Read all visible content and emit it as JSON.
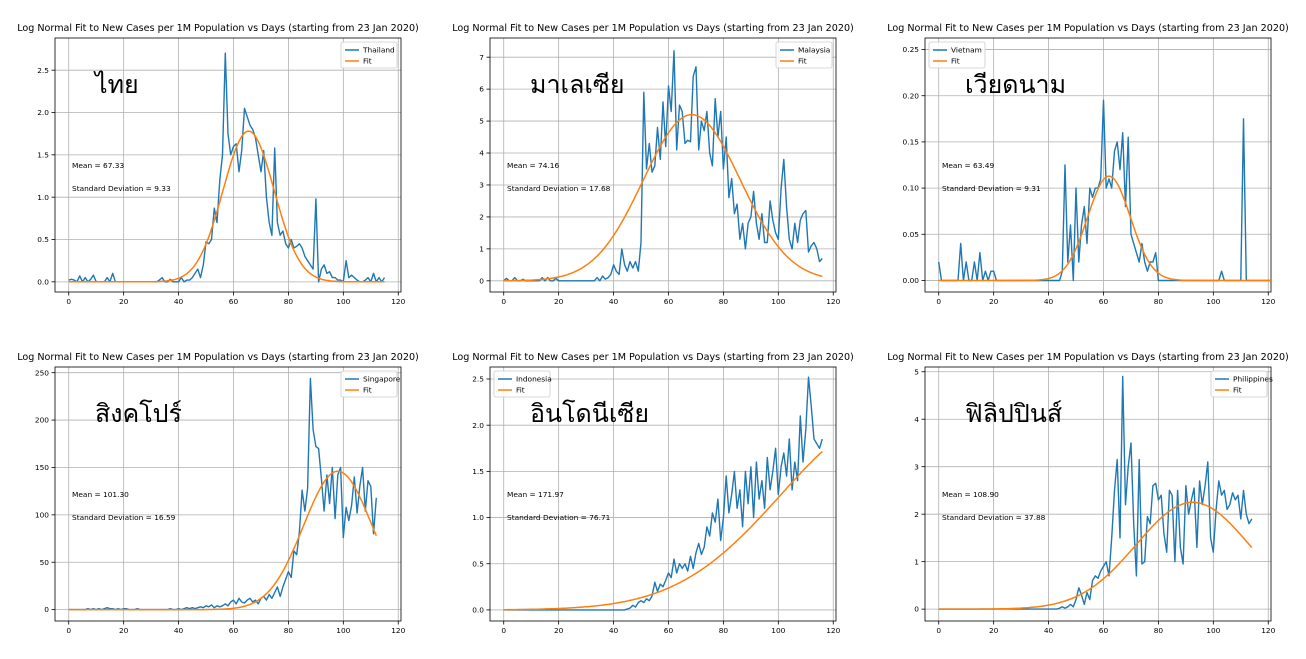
{
  "chart_data": [
    {
      "type": "line",
      "title": "Log Normal Fit to New Cases per 1M Population vs Days (starting from 23 Jan 2020)",
      "annotation": "ไทย",
      "mean_text": "Mean = 67.33",
      "sd_text": "Standard Deviation = 9.33",
      "legend_position": "top-right",
      "xlim": [
        -5,
        121
      ],
      "ylim": [
        -0.12,
        2.88
      ],
      "xticks": [
        0,
        20,
        40,
        60,
        80,
        100,
        120
      ],
      "yticks": [
        0.0,
        0.5,
        1.0,
        1.5,
        2.0,
        2.5
      ],
      "ytick_labels": [
        "0.0",
        "0.5",
        "1.0",
        "1.5",
        "2.0",
        "2.5"
      ],
      "grid": true,
      "fit": {
        "mean": 65.5,
        "sd": 9.33,
        "peak": 1.78,
        "color": "#ff7f0e"
      },
      "series": [
        {
          "name": "Thailand",
          "color": "#1f77b4",
          "values": [
            0.02,
            0.03,
            0.02,
            0.0,
            0.07,
            0.0,
            0.05,
            0.0,
            0.03,
            0.08,
            0.0,
            0.0,
            0.0,
            0.0,
            0.05,
            0.0,
            0.1,
            0.0,
            0.0,
            0.0,
            0.0,
            0.0,
            0.0,
            0.0,
            0.0,
            0.0,
            0.0,
            0.0,
            0.0,
            0.0,
            0.0,
            0.0,
            0.0,
            0.02,
            0.05,
            0.0,
            0.0,
            0.03,
            0.0,
            0.0,
            0.0,
            0.05,
            0.0,
            0.02,
            0.02,
            0.05,
            0.1,
            0.15,
            0.05,
            0.2,
            0.47,
            0.45,
            0.5,
            0.87,
            0.7,
            1.2,
            1.5,
            2.7,
            1.75,
            1.5,
            1.6,
            1.63,
            1.3,
            1.55,
            2.05,
            1.95,
            1.85,
            1.8,
            1.7,
            1.5,
            1.3,
            1.55,
            1.0,
            0.7,
            0.55,
            1.58,
            0.7,
            0.55,
            0.6,
            0.45,
            0.4,
            0.5,
            0.4,
            0.42,
            0.45,
            0.4,
            0.3,
            0.25,
            0.2,
            0.15,
            0.98,
            0.0,
            0.15,
            0.2,
            0.1,
            0.12,
            0.05,
            0.05,
            0.02,
            0.02,
            0.0,
            0.25,
            0.05,
            0.08,
            0.05,
            0.02,
            0.0,
            0.0,
            0.02,
            0.05,
            0.0,
            0.1,
            0.0,
            0.05,
            0.0,
            0.05
          ]
        }
      ]
    },
    {
      "type": "line",
      "title": "Log Normal Fit to New Cases per 1M Population vs Days (starting from 23 Jan 2020)",
      "annotation": "มาเลเซีย",
      "mean_text": "Mean = 74.16",
      "sd_text": "Standard Deviation = 17.68",
      "legend_position": "top-right",
      "xlim": [
        -5,
        121
      ],
      "ylim": [
        -0.35,
        7.6
      ],
      "xticks": [
        0,
        20,
        40,
        60,
        80,
        100,
        120
      ],
      "yticks": [
        0,
        1,
        2,
        3,
        4,
        5,
        6,
        7
      ],
      "ytick_labels": [
        "0",
        "1",
        "2",
        "3",
        "4",
        "5",
        "6",
        "7"
      ],
      "grid": true,
      "fit": {
        "mean": 68.5,
        "sd": 17.68,
        "peak": 5.2,
        "color": "#ff7f0e"
      },
      "series": [
        {
          "name": "Malaysia",
          "color": "#1f77b4",
          "values": [
            0.0,
            0.08,
            0.0,
            0.0,
            0.1,
            0.0,
            0.0,
            0.05,
            0.0,
            0.0,
            0.0,
            0.0,
            0.0,
            0.0,
            0.1,
            0.0,
            0.1,
            0.0,
            0.0,
            0.08,
            0.0,
            0.0,
            0.0,
            0.0,
            0.0,
            0.0,
            0.0,
            0.0,
            0.0,
            0.0,
            0.0,
            0.0,
            0.0,
            0.0,
            0.1,
            0.0,
            0.15,
            0.05,
            0.1,
            0.2,
            0.5,
            0.3,
            0.2,
            1.0,
            0.5,
            0.3,
            0.6,
            0.4,
            0.6,
            0.3,
            1.2,
            5.9,
            3.5,
            4.3,
            3.4,
            3.6,
            4.8,
            3.8,
            5.6,
            4.2,
            6.1,
            5.3,
            7.2,
            4.1,
            5.5,
            5.3,
            4.3,
            4.4,
            4.35,
            6.4,
            6.7,
            4.1,
            5.0,
            4.7,
            5.3,
            4.0,
            3.6,
            5.7,
            4.5,
            5.3,
            3.5,
            4.5,
            2.6,
            3.2,
            2.1,
            2.4,
            1.3,
            1.8,
            1.0,
            1.8,
            2.0,
            2.8,
            1.8,
            1.3,
            2.1,
            1.2,
            1.2,
            2.5,
            1.9,
            1.5,
            1.3,
            2.9,
            3.8,
            2.3,
            1.3,
            1.0,
            1.8,
            1.2,
            1.9,
            2.1,
            2.2,
            0.9,
            1.1,
            1.2,
            1.0,
            0.6,
            0.7
          ]
        }
      ]
    },
    {
      "type": "line",
      "title": "Log Normal Fit to New Cases per 1M Population vs Days (starting from 23 Jan 2020)",
      "annotation": "เวียดนาม",
      "mean_text": "Mean = 63.49",
      "sd_text": "Standard Deviation = 9.31",
      "legend_position": "top-left",
      "xlim": [
        -5,
        121
      ],
      "ylim": [
        -0.0125,
        0.2625
      ],
      "xticks": [
        0,
        20,
        40,
        60,
        80,
        100,
        120
      ],
      "yticks": [
        0.0,
        0.05,
        0.1,
        0.15,
        0.2,
        0.25
      ],
      "ytick_labels": [
        "0.00",
        "0.05",
        "0.10",
        "0.15",
        "0.20",
        "0.25"
      ],
      "grid": true,
      "fit": {
        "mean": 62.0,
        "sd": 7.8,
        "peak": 0.113,
        "color": "#ff7f0e"
      },
      "series": [
        {
          "name": "Vietnam",
          "color": "#1f77b4",
          "values": [
            0.02,
            0.0,
            0.0,
            0.0,
            0.0,
            0.0,
            0.0,
            0.0,
            0.04,
            0.0,
            0.02,
            0.0,
            0.0,
            0.02,
            0.0,
            0.03,
            0.0,
            0.01,
            0.0,
            0.01,
            0.01,
            0.0,
            0.0,
            0.0,
            0.0,
            0.0,
            0.0,
            0.0,
            0.0,
            0.0,
            0.0,
            0.0,
            0.0,
            0.0,
            0.0,
            0.0,
            0.0,
            0.0,
            0.0,
            0.0,
            0.0,
            0.0,
            0.0,
            0.0,
            0.0,
            0.01,
            0.125,
            0.02,
            0.06,
            0.0,
            0.1,
            0.02,
            0.06,
            0.08,
            0.04,
            0.1,
            0.09,
            0.1,
            0.1,
            0.11,
            0.195,
            0.1,
            0.11,
            0.1,
            0.14,
            0.15,
            0.12,
            0.16,
            0.08,
            0.155,
            0.05,
            0.04,
            0.03,
            0.02,
            0.04,
            0.02,
            0.01,
            0.02,
            0.02,
            0.03,
            0.0,
            0.0,
            0.0,
            0.0,
            0.0,
            0.0,
            0.0,
            0.0,
            0.0,
            0.0,
            0.0,
            0.0,
            0.0,
            0.0,
            0.0,
            0.0,
            0.0,
            0.0,
            0.0,
            0.0,
            0.0,
            0.0,
            0.0,
            0.01,
            0.0,
            0.0,
            0.0,
            0.0,
            0.0,
            0.0,
            0.0,
            0.175,
            0.0,
            0.0,
            0.0,
            0.0,
            0.0,
            0.0,
            0.0,
            0.0,
            0.0,
            0.0,
            0.0,
            0.0,
            0.0,
            0.0,
            0.0,
            0.0,
            0.0,
            0.0,
            0.0,
            0.0,
            0.0,
            0.0,
            0.0
          ]
        }
      ]
    },
    {
      "type": "line",
      "title": "Log Normal Fit to New Cases per 1M Population vs Days (starting from 23 Jan 2020)",
      "annotation": "สิงคโปร์",
      "mean_text": "Mean = 101.30",
      "sd_text": "Standard Deviation = 16.59",
      "legend_position": "top-right",
      "xlim": [
        -5,
        121
      ],
      "ylim": [
        -12,
        256
      ],
      "xticks": [
        0,
        20,
        40,
        60,
        80,
        100,
        120
      ],
      "yticks": [
        0,
        50,
        100,
        150,
        200,
        250
      ],
      "ytick_labels": [
        "0",
        "50",
        "100",
        "150",
        "200",
        "250"
      ],
      "grid": true,
      "fit": {
        "mean": 98.0,
        "sd": 12.5,
        "peak": 146,
        "color": "#ff7f0e"
      },
      "series": [
        {
          "name": "Singapore",
          "color": "#1f77b4",
          "values": [
            0,
            0,
            0,
            0,
            0,
            0,
            0,
            1,
            0,
            1,
            0,
            1,
            0,
            1,
            2,
            1,
            1,
            0,
            1,
            0,
            1,
            1,
            0,
            0,
            0,
            1,
            0,
            0,
            0,
            0,
            0,
            0,
            0,
            0,
            0,
            0,
            0,
            1,
            0,
            0,
            1,
            0,
            1,
            2,
            1,
            2,
            1,
            2,
            3,
            2,
            4,
            3,
            5,
            2,
            4,
            3,
            4,
            6,
            4,
            8,
            10,
            6,
            12,
            8,
            7,
            10,
            12,
            8,
            10,
            6,
            12,
            14,
            10,
            16,
            12,
            18,
            24,
            14,
            24,
            32,
            40,
            34,
            62,
            58,
            82,
            126,
            104,
            128,
            244,
            190,
            172,
            170,
            138,
            104,
            142,
            112,
            150,
            96,
            142,
            150,
            76,
            108,
            94,
            110,
            140,
            102,
            130,
            150,
            104,
            136,
            130,
            80,
            118
          ]
        }
      ]
    },
    {
      "type": "line",
      "title": "Log Normal Fit to New Cases per 1M Population vs Days (starting from 23 Jan 2020)",
      "annotation": "อินโดนีเซีย",
      "mean_text": "Mean = 171.97",
      "sd_text": "Standard Deviation = 76.71",
      "legend_position": "top-left",
      "xlim": [
        -5,
        121
      ],
      "ylim": [
        -0.12,
        2.63
      ],
      "xticks": [
        0,
        20,
        40,
        60,
        80,
        100,
        120
      ],
      "yticks": [
        0.0,
        0.5,
        1.0,
        1.5,
        2.0,
        2.5
      ],
      "ytick_labels": [
        "0.0",
        "0.5",
        "1.0",
        "1.5",
        "2.0",
        "2.5"
      ],
      "grid": true,
      "fit": {
        "mean": 139.0,
        "sd": 38.0,
        "peak": 2.06,
        "color": "#ff7f0e"
      },
      "series": [
        {
          "name": "Indonesia",
          "color": "#1f77b4",
          "values": [
            0,
            0,
            0,
            0,
            0,
            0,
            0,
            0,
            0,
            0,
            0,
            0,
            0,
            0,
            0,
            0,
            0,
            0,
            0,
            0,
            0,
            0,
            0,
            0,
            0,
            0,
            0,
            0,
            0,
            0,
            0,
            0,
            0,
            0,
            0,
            0,
            0,
            0,
            0,
            0,
            0,
            0,
            0,
            0,
            0,
            0.01,
            0.02,
            0.05,
            0.03,
            0.08,
            0.1,
            0.08,
            0.12,
            0.1,
            0.15,
            0.3,
            0.2,
            0.28,
            0.25,
            0.32,
            0.4,
            0.35,
            0.55,
            0.4,
            0.5,
            0.45,
            0.5,
            0.42,
            0.58,
            0.45,
            0.62,
            0.72,
            0.6,
            0.68,
            0.9,
            0.8,
            1.05,
            0.95,
            1.2,
            0.75,
            1.0,
            1.45,
            1.05,
            1.25,
            1.5,
            1.1,
            1.3,
            0.9,
            1.5,
            1.15,
            1.55,
            1.0,
            1.6,
            1.2,
            1.4,
            1.1,
            1.65,
            1.3,
            1.5,
            1.75,
            1.25,
            1.55,
            1.7,
            1.45,
            1.85,
            1.3,
            1.6,
            1.4,
            2.1,
            1.6,
            1.95,
            2.52,
            2.2,
            1.85,
            1.8,
            1.75,
            1.85
          ]
        }
      ]
    },
    {
      "type": "line",
      "title": "Log Normal Fit to New Cases per 1M Population vs Days (starting from 23 Jan 2020)",
      "annotation": "ฟิลิปปินส์",
      "mean_text": "Mean = 108.90",
      "sd_text": "Standard Deviation = 37.88",
      "legend_position": "top-right",
      "xlim": [
        -5,
        121
      ],
      "ylim": [
        -0.25,
        5.1
      ],
      "xticks": [
        0,
        20,
        40,
        60,
        80,
        100,
        120
      ],
      "yticks": [
        0,
        1,
        2,
        3,
        4,
        5
      ],
      "ytick_labels": [
        "0",
        "1",
        "2",
        "3",
        "4",
        "5"
      ],
      "grid": true,
      "fit": {
        "mean": 92.5,
        "sd": 20.5,
        "peak": 2.25,
        "color": "#ff7f0e"
      },
      "series": [
        {
          "name": "Philippines",
          "color": "#1f77b4",
          "values": [
            0,
            0,
            0,
            0,
            0,
            0,
            0,
            0,
            0,
            0,
            0,
            0,
            0,
            0,
            0,
            0,
            0,
            0,
            0,
            0,
            0,
            0,
            0,
            0,
            0,
            0,
            0,
            0,
            0,
            0,
            0,
            0,
            0,
            0,
            0,
            0,
            0,
            0,
            0,
            0,
            0,
            0,
            0,
            0,
            0.02,
            0.05,
            0.02,
            0.05,
            0.1,
            0.05,
            0.2,
            0.45,
            0.3,
            0.1,
            0.35,
            0.2,
            0.6,
            0.7,
            0.65,
            0.8,
            0.9,
            1.0,
            0.7,
            1.5,
            2.5,
            3.15,
            1.5,
            4.9,
            2.2,
            3.0,
            3.5,
            1.8,
            0.7,
            3.15,
            0.95,
            1.0,
            1.95,
            1.8,
            2.6,
            2.65,
            2.3,
            2.4,
            1.6,
            1.2,
            2.5,
            2.4,
            1.0,
            2.5,
            1.3,
            0.95,
            2.6,
            2.0,
            2.3,
            2.55,
            1.3,
            2.7,
            2.2,
            2.6,
            3.1,
            1.5,
            1.2,
            2.1,
            2.7,
            2.4,
            2.5,
            2.1,
            2.2,
            2.45,
            2.3,
            2.4,
            1.9,
            2.5,
            2.0,
            1.8,
            1.9
          ]
        }
      ]
    }
  ]
}
